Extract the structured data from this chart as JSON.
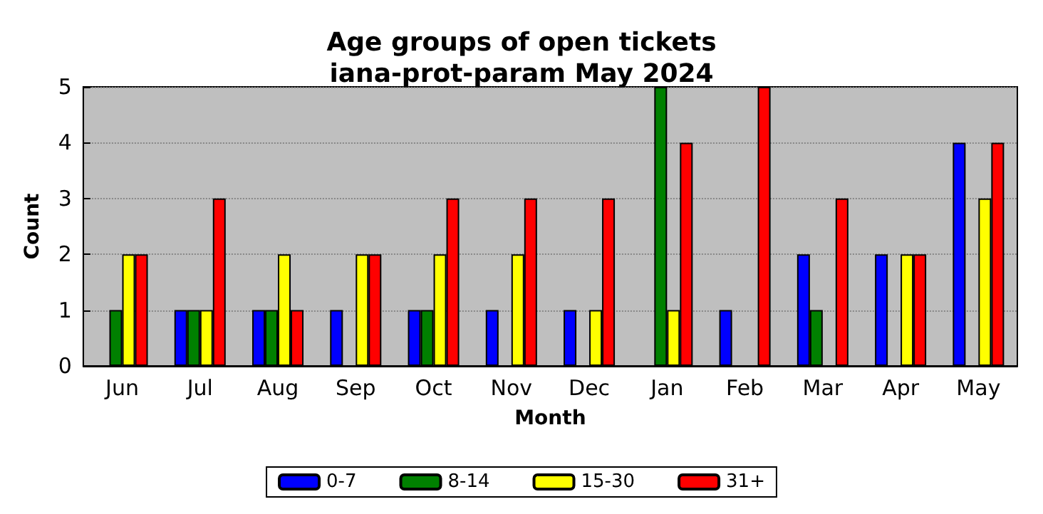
{
  "chart_data": {
    "type": "bar",
    "title": "Age groups of open tickets\niana-prot-param May 2024",
    "xlabel": "Month",
    "ylabel": "Count",
    "categories": [
      "Jun",
      "Jul",
      "Aug",
      "Sep",
      "Oct",
      "Nov",
      "Dec",
      "Jan",
      "Feb",
      "Mar",
      "Apr",
      "May"
    ],
    "series": [
      {
        "name": "0-7",
        "color": "#0000ff",
        "values": [
          0,
          1,
          1,
          1,
          1,
          1,
          1,
          0,
          1,
          2,
          2,
          4
        ]
      },
      {
        "name": "8-14",
        "color": "#008000",
        "values": [
          1,
          1,
          1,
          0,
          1,
          0,
          0,
          5,
          0,
          1,
          0,
          0
        ]
      },
      {
        "name": "15-30",
        "color": "#ffff00",
        "values": [
          2,
          1,
          2,
          2,
          2,
          2,
          1,
          1,
          0,
          0,
          2,
          3
        ]
      },
      {
        "name": "31+",
        "color": "#ff0000",
        "values": [
          2,
          3,
          1,
          2,
          3,
          3,
          3,
          4,
          5,
          3,
          2,
          4
        ]
      }
    ],
    "ylim": [
      0,
      5
    ],
    "yticks": [
      0,
      1,
      2,
      3,
      4,
      5
    ],
    "grid": "y",
    "legend": "bottom"
  }
}
